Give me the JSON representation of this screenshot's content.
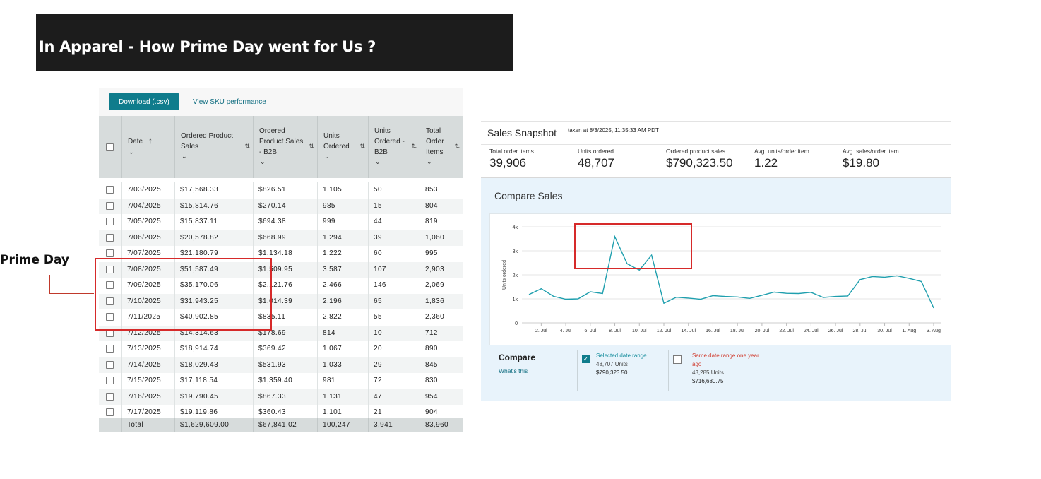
{
  "title": "In Apparel - How Prime Day went for Us ?",
  "annotation": {
    "prime_day_label": "Prime Day"
  },
  "table": {
    "download_label": "Download (.csv)",
    "sku_link": "View SKU performance",
    "headers": [
      "Date",
      "Ordered Product Sales",
      "Ordered Product Sales - B2B",
      "Units Ordered",
      "Units Ordered - B2B",
      "Total Order Items"
    ],
    "rows": [
      [
        "7/03/2025",
        "$17,568.33",
        "$826.51",
        "1,105",
        "50",
        "853"
      ],
      [
        "7/04/2025",
        "$15,814.76",
        "$270.14",
        "985",
        "15",
        "804"
      ],
      [
        "7/05/2025",
        "$15,837.11",
        "$694.38",
        "999",
        "44",
        "819"
      ],
      [
        "7/06/2025",
        "$20,578.82",
        "$668.99",
        "1,294",
        "39",
        "1,060"
      ],
      [
        "7/07/2025",
        "$21,180.79",
        "$1,134.18",
        "1,222",
        "60",
        "995"
      ],
      [
        "7/08/2025",
        "$51,587.49",
        "$1,509.95",
        "3,587",
        "107",
        "2,903"
      ],
      [
        "7/09/2025",
        "$35,170.06",
        "$2,121.76",
        "2,466",
        "146",
        "2,069"
      ],
      [
        "7/10/2025",
        "$31,943.25",
        "$1,014.39",
        "2,196",
        "65",
        "1,836"
      ],
      [
        "7/11/2025",
        "$40,902.85",
        "$835.11",
        "2,822",
        "55",
        "2,360"
      ],
      [
        "7/12/2025",
        "$14,314.63",
        "$178.69",
        "814",
        "10",
        "712"
      ],
      [
        "7/13/2025",
        "$18,914.74",
        "$369.42",
        "1,067",
        "20",
        "890"
      ],
      [
        "7/14/2025",
        "$18,029.43",
        "$531.93",
        "1,033",
        "29",
        "845"
      ],
      [
        "7/15/2025",
        "$17,118.54",
        "$1,359.40",
        "981",
        "72",
        "830"
      ],
      [
        "7/16/2025",
        "$19,790.45",
        "$867.33",
        "1,131",
        "47",
        "954"
      ],
      [
        "7/17/2025",
        "$19,119.86",
        "$360.43",
        "1,101",
        "21",
        "904"
      ]
    ],
    "total": [
      "Total",
      "$1,629,609.00",
      "$67,841.02",
      "100,247",
      "3,941",
      "83,960"
    ]
  },
  "snapshot": {
    "title": "Sales Snapshot",
    "taken_at": "taken at 8/3/2025, 11:35:33 AM PDT",
    "metrics": [
      {
        "label": "Total order items",
        "value": "39,906"
      },
      {
        "label": "Units ordered",
        "value": "48,707"
      },
      {
        "label": "Ordered product sales",
        "value": "$790,323.50"
      },
      {
        "label": "Avg. units/order item",
        "value": "1.22"
      },
      {
        "label": "Avg. sales/order item",
        "value": "$19.80"
      }
    ],
    "compare_title": "Compare Sales",
    "compare_label": "Compare",
    "whats_this": "What's this",
    "selected": {
      "label": "Selected date range",
      "units": "48,707 Units",
      "sales": "$790,323.50"
    },
    "previous": {
      "label_line1": "Same date range one year",
      "label_line2": "ago",
      "units": "43,285 Units",
      "sales": "$716,680.75"
    }
  },
  "chart_data": {
    "type": "line",
    "ylabel": "Units ordered",
    "y_ticks": [
      "0",
      "1k",
      "2k",
      "3k",
      "4k"
    ],
    "ylim": [
      0,
      4000
    ],
    "x_ticks": [
      "2. Jul",
      "4. Jul",
      "6. Jul",
      "8. Jul",
      "10. Jul",
      "12. Jul",
      "14. Jul",
      "16. Jul",
      "18. Jul",
      "20. Jul",
      "22. Jul",
      "24. Jul",
      "26. Jul",
      "28. Jul",
      "30. Jul",
      "1. Aug",
      "3. Aug"
    ],
    "series": [
      {
        "color": "#1f9fae",
        "values": [
          1180,
          1420,
          1105,
          985,
          999,
          1294,
          1222,
          3587,
          2466,
          2196,
          2822,
          814,
          1067,
          1033,
          981,
          1131,
          1101,
          1080,
          1020,
          1150,
          1280,
          1230,
          1220,
          1270,
          1060,
          1100,
          1120,
          1800,
          1930,
          1900,
          1960,
          1850,
          1720,
          620
        ]
      }
    ],
    "grid": true
  },
  "colors": {
    "accent": "#0f7c8c",
    "highlight": "#d62a2a",
    "line": "#1f9fae"
  }
}
